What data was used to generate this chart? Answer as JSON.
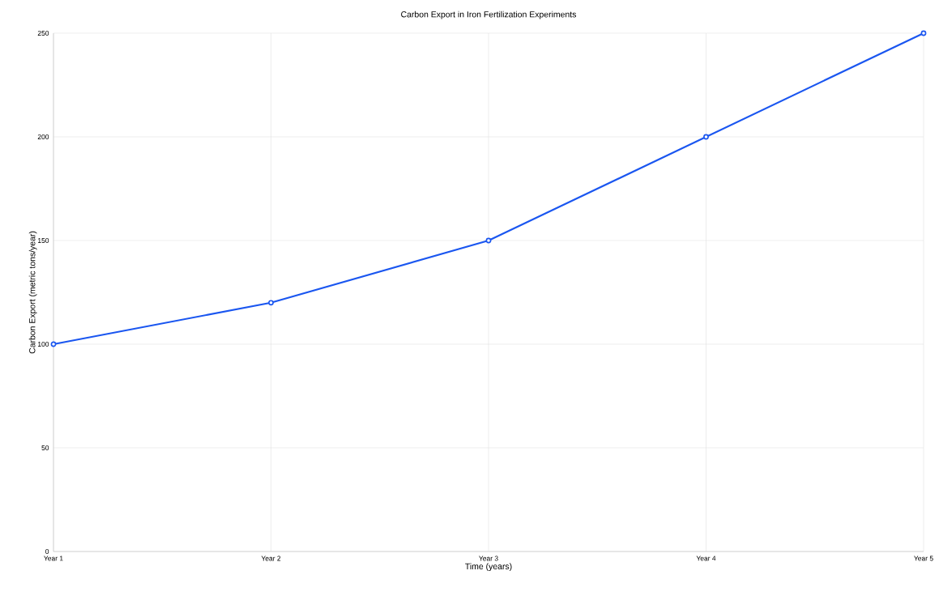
{
  "chart_data": {
    "type": "line",
    "title": "Carbon Export in Iron Fertilization Experiments",
    "xlabel": "Time (years)",
    "ylabel": "Carbon Export (metric tons/year)",
    "categories": [
      "Year 1",
      "Year 2",
      "Year 3",
      "Year 4",
      "Year 5"
    ],
    "values": [
      100,
      120,
      150,
      200,
      250
    ],
    "color": "#1a56f0",
    "ylim": [
      0,
      250
    ],
    "yticks": [
      0,
      50,
      100,
      150,
      200,
      250
    ],
    "grid": true,
    "marker": "circle",
    "line_style": "solid"
  }
}
